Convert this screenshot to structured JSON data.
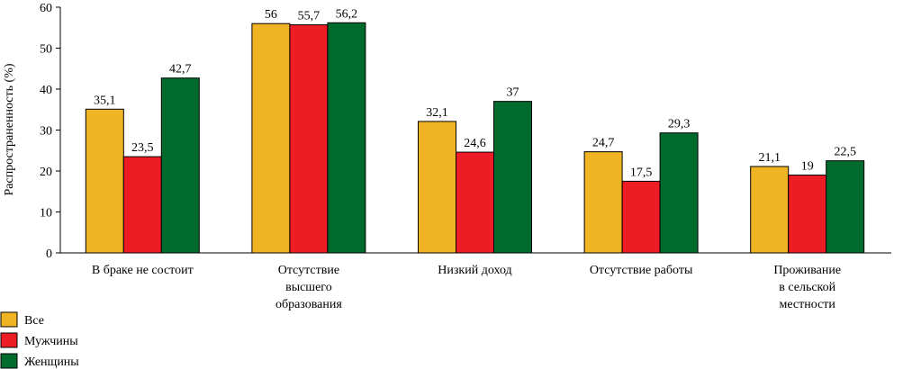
{
  "chart_data": {
    "type": "bar",
    "ylabel": "Распространенность (%)",
    "ylim": [
      0,
      60
    ],
    "yticks": [
      0,
      10,
      20,
      30,
      40,
      50,
      60
    ],
    "grid": false,
    "legend_position": "bottom-left",
    "categories": [
      [
        "В браке не состоит"
      ],
      [
        "Отсутствие",
        "высшего",
        "образования"
      ],
      [
        "Низкий доход"
      ],
      [
        "Отсутствие работы"
      ],
      [
        "Проживание",
        "в сельской",
        "местности"
      ]
    ],
    "series": [
      {
        "name": "Все",
        "color": "#f0b323",
        "values": [
          35.1,
          56,
          32.1,
          24.7,
          21.1
        ],
        "labels": [
          "35,1",
          "56",
          "32,1",
          "24,7",
          "21,1"
        ]
      },
      {
        "name": "Мужчины",
        "color": "#ee1c25",
        "values": [
          23.5,
          55.7,
          24.6,
          17.5,
          19
        ],
        "labels": [
          "23,5",
          "55,7",
          "24,6",
          "17,5",
          "19"
        ]
      },
      {
        "name": "Женщины",
        "color": "#006b2d",
        "values": [
          42.7,
          56.2,
          37,
          29.3,
          22.5
        ],
        "labels": [
          "42,7",
          "56,2",
          "37",
          "29,3",
          "22,5"
        ]
      }
    ]
  }
}
